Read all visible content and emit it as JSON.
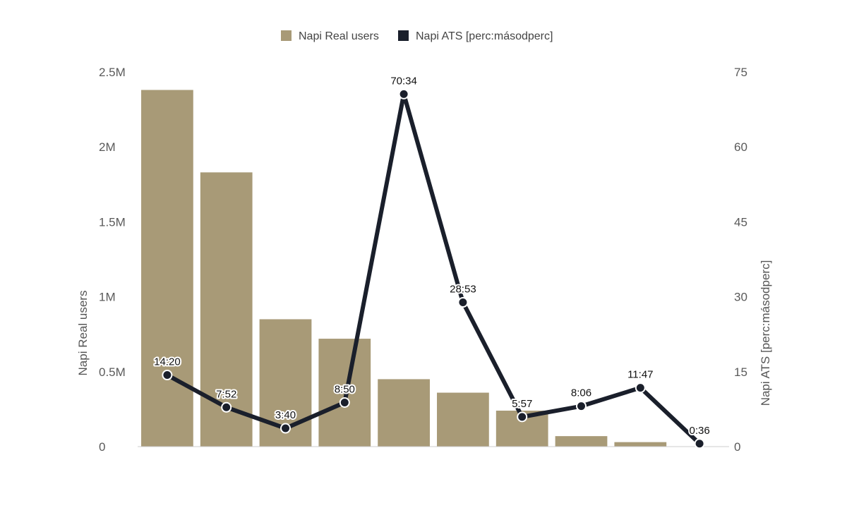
{
  "chart_data": {
    "type": "bar",
    "categories": [
      "",
      "",
      "",
      "",
      "",
      "",
      "",
      "",
      "",
      ""
    ],
    "legend": {
      "position": "top"
    },
    "grid": false,
    "y_left": {
      "label": "Napi Real users",
      "range": [
        0,
        2500000
      ],
      "ticks": [
        0,
        500000,
        1000000,
        1500000,
        2000000,
        2500000
      ],
      "tick_labels": [
        "0",
        "0.5M",
        "1M",
        "1.5M",
        "2M",
        "2.5M"
      ]
    },
    "y_right": {
      "label": "Napi ATS [perc:másodperc]",
      "range": [
        0,
        75
      ],
      "ticks": [
        0,
        15,
        30,
        45,
        60,
        75
      ],
      "tick_labels": [
        "0",
        "15",
        "30",
        "45",
        "60",
        "75"
      ]
    },
    "series": [
      {
        "name": "Napi Real users",
        "type": "bar",
        "axis": "left",
        "color": "#a89a77",
        "values": [
          2380000,
          1830000,
          850000,
          720000,
          450000,
          360000,
          240000,
          70000,
          30000,
          0
        ]
      },
      {
        "name": "Napi ATS [perc:másodperc]",
        "type": "line",
        "axis": "right",
        "color": "#1a1f2b",
        "values": [
          14.33,
          7.87,
          3.67,
          8.83,
          70.57,
          28.88,
          5.95,
          8.1,
          11.78,
          0.6
        ],
        "data_labels": [
          "14:20",
          "7:52",
          "3:40",
          "8:50",
          "70:34",
          "28:53",
          "5:57",
          "8:06",
          "11:47",
          "0:36"
        ]
      }
    ]
  }
}
